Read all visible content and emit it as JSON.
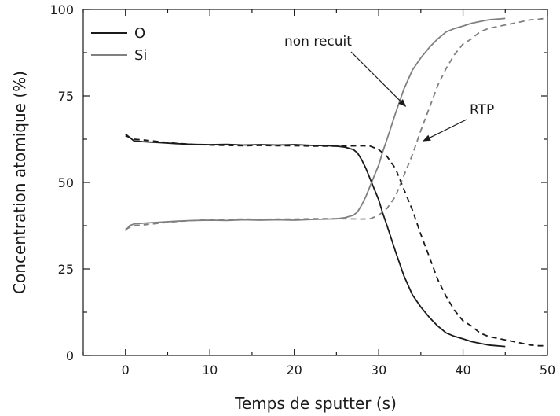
{
  "chart_data": {
    "type": "line",
    "xlabel": "Temps de sputter (s)",
    "ylabel": "Concentration atomique (%)",
    "xlim": [
      -5,
      50
    ],
    "ylim": [
      0,
      100
    ],
    "xticks": [
      0,
      10,
      20,
      30,
      40,
      50
    ],
    "yticks": [
      0,
      25,
      50,
      75,
      100
    ],
    "grid": false,
    "legend": {
      "placement": "top-left",
      "entries": [
        {
          "label": "O",
          "color": "#1a1a1a",
          "dash": "solid"
        },
        {
          "label": "Si",
          "color": "#808080",
          "dash": "solid"
        }
      ]
    },
    "annotations": [
      {
        "text": "non recuit",
        "target": [
          33.2,
          72
        ]
      },
      {
        "text": "RTP",
        "target": [
          35.3,
          62
        ]
      }
    ],
    "series": [
      {
        "id": "O-non-recuit",
        "color": "#1a1a1a",
        "dash": "solid",
        "x": [
          0,
          0.5,
          1,
          2,
          4,
          6,
          8,
          10,
          12,
          14,
          16,
          18,
          20,
          22,
          24,
          25,
          26,
          27,
          27.5,
          28,
          28.5,
          29,
          29.5,
          30,
          30.5,
          31,
          32,
          33,
          34,
          35,
          36,
          37,
          38,
          39,
          40,
          41,
          42,
          43,
          44,
          45
        ],
        "y": [
          64,
          63,
          62,
          61.8,
          61.5,
          61.2,
          61,
          60.9,
          61,
          60.8,
          60.9,
          60.8,
          60.9,
          60.7,
          60.6,
          60.5,
          60.2,
          59.5,
          58.5,
          56.5,
          54,
          51,
          48,
          45,
          41,
          37.5,
          30,
          23,
          17.5,
          14,
          11,
          8.5,
          6.5,
          5.5,
          4.8,
          4,
          3.5,
          3,
          2.8,
          2.6
        ]
      },
      {
        "id": "O-RTP",
        "color": "#1a1a1a",
        "dash": "dashed",
        "x": [
          0,
          1,
          2,
          4,
          6,
          8,
          10,
          12,
          14,
          16,
          18,
          20,
          22,
          24,
          26,
          28,
          29,
          30,
          31,
          32,
          33,
          34,
          35,
          36,
          37,
          38,
          39,
          40,
          41,
          42,
          43,
          44,
          45,
          46,
          47,
          48,
          49,
          50
        ],
        "y": [
          63.5,
          62.5,
          62.3,
          61.8,
          61.3,
          61,
          60.8,
          60.7,
          60.6,
          60.7,
          60.6,
          60.6,
          60.5,
          60.5,
          60.5,
          60.6,
          60.5,
          59.5,
          57.5,
          54,
          48,
          42,
          35,
          28.5,
          22,
          17,
          13,
          10,
          8.5,
          6.5,
          5.5,
          5,
          4.5,
          4,
          3.5,
          3,
          2.8,
          2.8
        ]
      },
      {
        "id": "Si-non-recuit",
        "color": "#808080",
        "dash": "solid",
        "x": [
          0,
          0.5,
          1,
          2,
          4,
          6,
          8,
          10,
          12,
          14,
          16,
          18,
          20,
          22,
          24,
          25,
          26,
          27,
          27.5,
          28,
          28.5,
          29,
          29.5,
          30,
          30.5,
          31,
          32,
          33,
          34,
          35,
          36,
          37,
          38,
          39,
          40,
          41,
          42,
          43,
          44,
          45
        ],
        "y": [
          36,
          37.5,
          38,
          38.2,
          38.5,
          38.8,
          39,
          39.1,
          39,
          39.2,
          39.1,
          39.2,
          39.1,
          39.3,
          39.4,
          39.5,
          39.8,
          40.5,
          41.5,
          43.5,
          46,
          49,
          52,
          55,
          59,
          62.5,
          70,
          77,
          82.5,
          86,
          89,
          91.5,
          93.5,
          94.5,
          95.2,
          96,
          96.5,
          97,
          97.2,
          97.4
        ]
      },
      {
        "id": "Si-RTP",
        "color": "#808080",
        "dash": "dashed",
        "x": [
          0,
          1,
          2,
          4,
          6,
          8,
          10,
          12,
          14,
          16,
          18,
          20,
          22,
          24,
          26,
          28,
          29,
          30,
          31,
          32,
          33,
          34,
          35,
          36,
          37,
          38,
          39,
          40,
          41,
          42,
          43,
          44,
          45,
          46,
          47,
          48,
          49,
          50
        ],
        "y": [
          36.5,
          37.5,
          37.7,
          38.2,
          38.7,
          39,
          39.2,
          39.3,
          39.4,
          39.3,
          39.4,
          39.4,
          39.5,
          39.5,
          39.5,
          39.4,
          39.5,
          40.5,
          42.5,
          46,
          52,
          58,
          65,
          71.5,
          78,
          83,
          87,
          90,
          91.5,
          93.5,
          94.5,
          95,
          95.5,
          96,
          96.5,
          97,
          97.2,
          97.5
        ]
      }
    ]
  }
}
